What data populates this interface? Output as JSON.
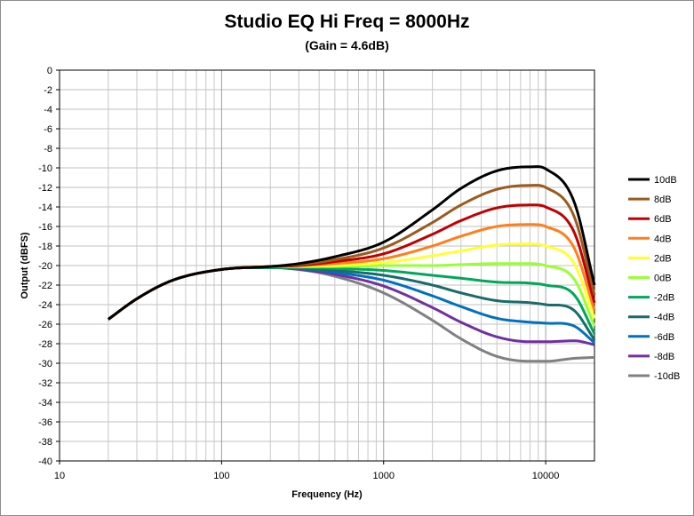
{
  "chart_data": {
    "type": "line",
    "title": "Studio EQ Hi Freq = 8000Hz",
    "subtitle": "(Gain = 4.6dB)",
    "xlabel": "Frequency (Hz)",
    "ylabel": "Output (dBFS)",
    "x_scale": "log",
    "xlim": [
      10,
      20000
    ],
    "ylim": [
      -40,
      0
    ],
    "x_ticks": [
      "10",
      "100",
      "1000",
      "10000"
    ],
    "y_ticks": [
      "0",
      "-2",
      "-4",
      "-6",
      "-8",
      "-10",
      "-12",
      "-14",
      "-16",
      "-18",
      "-20",
      "-22",
      "-24",
      "-26",
      "-28",
      "-30",
      "-32",
      "-34",
      "-36",
      "-38",
      "-40"
    ],
    "grid": true,
    "legend": "right",
    "x": [
      20,
      30,
      50,
      100,
      200,
      300,
      500,
      1000,
      2000,
      3000,
      5000,
      8000,
      10000,
      15000,
      20000
    ],
    "series": [
      {
        "name": "10dB",
        "color": "#000000",
        "values": [
          -25.5,
          -23.4,
          -21.5,
          -20.4,
          -20.1,
          -19.8,
          -19.1,
          -17.6,
          -14.3,
          -12.1,
          -10.3,
          -9.9,
          -10.1,
          -13.5,
          -22.0
        ]
      },
      {
        "name": "8dB",
        "color": "#9c5a1c",
        "values": [
          -25.5,
          -23.4,
          -21.5,
          -20.4,
          -20.1,
          -19.9,
          -19.4,
          -18.2,
          -15.6,
          -13.8,
          -12.2,
          -11.8,
          -12.0,
          -15.0,
          -23.0
        ]
      },
      {
        "name": "6dB",
        "color": "#c00000",
        "values": [
          -25.5,
          -23.4,
          -21.5,
          -20.4,
          -20.1,
          -20.0,
          -19.6,
          -18.8,
          -16.8,
          -15.4,
          -14.1,
          -13.8,
          -14.0,
          -16.6,
          -23.8
        ]
      },
      {
        "name": "4dB",
        "color": "#ff7f1a",
        "values": [
          -25.5,
          -23.4,
          -21.5,
          -20.4,
          -20.1,
          -20.0,
          -19.8,
          -19.3,
          -18.0,
          -17.0,
          -16.0,
          -15.8,
          -16.0,
          -18.2,
          -24.6
        ]
      },
      {
        "name": "2dB",
        "color": "#ffff33",
        "values": [
          -25.5,
          -23.4,
          -21.5,
          -20.4,
          -20.1,
          -20.1,
          -20.0,
          -19.7,
          -19.0,
          -18.5,
          -17.9,
          -17.8,
          -18.0,
          -19.8,
          -25.4
        ]
      },
      {
        "name": "0dB",
        "color": "#99ff33",
        "values": [
          -25.5,
          -23.4,
          -21.5,
          -20.4,
          -20.1,
          -20.1,
          -20.1,
          -20.0,
          -20.0,
          -19.9,
          -19.8,
          -19.8,
          -20.0,
          -21.4,
          -26.2
        ]
      },
      {
        "name": "-2dB",
        "color": "#00a65a",
        "values": [
          -25.5,
          -23.4,
          -21.5,
          -20.4,
          -20.2,
          -20.2,
          -20.3,
          -20.5,
          -21.0,
          -21.3,
          -21.7,
          -21.8,
          -22.0,
          -23.0,
          -27.0
        ]
      },
      {
        "name": "-4dB",
        "color": "#1a6b6b",
        "values": [
          -25.5,
          -23.4,
          -21.5,
          -20.4,
          -20.2,
          -20.3,
          -20.5,
          -21.0,
          -22.0,
          -22.8,
          -23.6,
          -23.8,
          -24.0,
          -24.6,
          -27.6
        ]
      },
      {
        "name": "-6dB",
        "color": "#0070c0",
        "values": [
          -25.5,
          -23.4,
          -21.5,
          -20.4,
          -20.2,
          -20.3,
          -20.7,
          -21.5,
          -23.1,
          -24.2,
          -25.4,
          -25.8,
          -25.9,
          -26.2,
          -27.9
        ]
      },
      {
        "name": "-8dB",
        "color": "#7030a0",
        "values": [
          -25.5,
          -23.4,
          -21.5,
          -20.4,
          -20.2,
          -20.4,
          -20.9,
          -22.1,
          -24.3,
          -25.8,
          -27.3,
          -27.8,
          -27.8,
          -27.7,
          -28.1
        ]
      },
      {
        "name": "-10dB",
        "color": "#808080",
        "values": [
          -25.5,
          -23.4,
          -21.5,
          -20.4,
          -20.2,
          -20.4,
          -21.1,
          -22.8,
          -25.6,
          -27.5,
          -29.3,
          -29.8,
          -29.8,
          -29.5,
          -29.4
        ]
      }
    ]
  }
}
